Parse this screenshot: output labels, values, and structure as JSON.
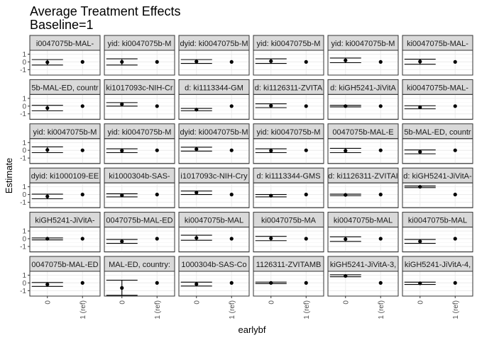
{
  "chart_data": {
    "type": "scatter",
    "title_lines": [
      "Average Treatment Effects",
      "Baseline=1"
    ],
    "xlabel": "earlybf",
    "ylabel": "Estimate",
    "categories": [
      "0",
      "1 (ref)"
    ],
    "y_ticks": [
      1,
      0,
      -1
    ],
    "ylim": [
      -1.7,
      1.5
    ],
    "grid": true,
    "layout": {
      "rows": 6,
      "cols": 6
    },
    "panels": [
      {
        "strip": "i0047075b-MAL-",
        "estimate": -0.05,
        "ci": [
          -0.4,
          0.3
        ]
      },
      {
        "strip": "yid: ki0047075b-M",
        "estimate": 0.0,
        "ci": [
          -0.4,
          0.4
        ]
      },
      {
        "strip": "dyid: ki0047075b-M",
        "estimate": 0.05,
        "ci": [
          -0.2,
          0.3
        ]
      },
      {
        "strip": "yid: ki0047075b-M",
        "estimate": 0.1,
        "ci": [
          -0.2,
          0.4
        ]
      },
      {
        "strip": "yid: ki0047075b-M",
        "estimate": 0.2,
        "ci": [
          -0.1,
          0.5
        ]
      },
      {
        "strip": "ki0047075b-MAL-",
        "estimate": 0.05,
        "ci": [
          -0.3,
          0.35
        ]
      },
      {
        "strip": "5b-MAL-ED, countr",
        "estimate": -0.25,
        "ci": [
          -0.6,
          0.1
        ]
      },
      {
        "strip": "ki1017093c-NIH-Cr",
        "estimate": 0.25,
        "ci": [
          0.0,
          0.45
        ]
      },
      {
        "strip": "d: ki1113344-GM",
        "estimate": -0.45,
        "ci": [
          -0.6,
          -0.3
        ]
      },
      {
        "strip": "d: ki1126311-ZVITA",
        "estimate": 0.05,
        "ci": [
          -0.2,
          0.3
        ]
      },
      {
        "strip": "d: kiGH5241-JiVitA",
        "estimate": 0.0,
        "ci": [
          -0.1,
          0.1
        ]
      },
      {
        "strip": "ki0047075b-MAL-",
        "estimate": -0.15,
        "ci": [
          -0.35,
          0.05
        ]
      },
      {
        "strip": "yid: ki0047075b-M",
        "estimate": 0.05,
        "ci": [
          -0.3,
          0.45
        ]
      },
      {
        "strip": "yid: ki0047075b-M",
        "estimate": -0.05,
        "ci": [
          -0.3,
          0.2
        ]
      },
      {
        "strip": "dyid: ki0047075b-M",
        "estimate": 0.15,
        "ci": [
          -0.1,
          0.4
        ]
      },
      {
        "strip": "yid: ki0047075b-M",
        "estimate": -0.05,
        "ci": [
          -0.3,
          0.2
        ]
      },
      {
        "strip": "0047075b-MAL-E",
        "estimate": -0.05,
        "ci": [
          -0.3,
          0.25
        ]
      },
      {
        "strip": "5b-MAL-ED, countr",
        "estimate": -0.2,
        "ci": [
          -0.45,
          0.05
        ]
      },
      {
        "strip": "dyid: ki1000109-EE",
        "estimate": -0.25,
        "ci": [
          -0.55,
          0.05
        ]
      },
      {
        "strip": "ki1000304b-SAS-",
        "estimate": -0.1,
        "ci": [
          -0.3,
          0.1
        ]
      },
      {
        "strip": "i1017093c-NIH-Cry",
        "estimate": 0.25,
        "ci": [
          0.0,
          0.45
        ]
      },
      {
        "strip": "d: ki1113344-GMS",
        "estimate": -0.15,
        "ci": [
          -0.3,
          0.0
        ]
      },
      {
        "strip": "d: ki1126311-ZVITAI",
        "estimate": -0.05,
        "ci": [
          -0.15,
          0.05
        ]
      },
      {
        "strip": "d: kiGH5241-JiVitA-",
        "estimate": 1.0,
        "ci": [
          0.9,
          1.1
        ]
      },
      {
        "strip": "kiGH5241-JiVitA-",
        "estimate": 0.0,
        "ci": [
          -0.15,
          0.1
        ]
      },
      {
        "strip": "0047075b-MAL-ED",
        "estimate": -0.35,
        "ci": [
          -0.6,
          -0.1
        ]
      },
      {
        "strip": "ki0047075b-MAL",
        "estimate": 0.1,
        "ci": [
          -0.2,
          0.45
        ]
      },
      {
        "strip": "ki0047075b-MA",
        "estimate": 0.05,
        "ci": [
          -0.25,
          0.3
        ]
      },
      {
        "strip": "ki0047075b-MAL",
        "estimate": -0.05,
        "ci": [
          -0.35,
          0.25
        ]
      },
      {
        "strip": "ki0047075b-MAL",
        "estimate": -0.35,
        "ci": [
          -0.6,
          -0.1
        ]
      },
      {
        "strip": "0047075b-MAL-ED",
        "estimate": -0.2,
        "ci": [
          -0.45,
          0.05
        ]
      },
      {
        "strip": "MAL-ED, country:",
        "estimate": -0.65,
        "ci": [
          -1.6,
          0.35
        ]
      },
      {
        "strip": "1000304b-SAS-Co",
        "estimate": -0.15,
        "ci": [
          -0.4,
          0.1
        ]
      },
      {
        "strip": "1126311-ZVITAMB",
        "estimate": 0.0,
        "ci": [
          -0.1,
          0.1
        ]
      },
      {
        "strip": "kiGH5241-JiVitA-3,",
        "estimate": 0.9,
        "ci": [
          0.8,
          1.05
        ]
      },
      {
        "strip": "kiGH5241-JiVitA-4,",
        "estimate": -0.05,
        "ci": [
          -0.2,
          0.1
        ]
      }
    ],
    "reference_value": 0
  }
}
